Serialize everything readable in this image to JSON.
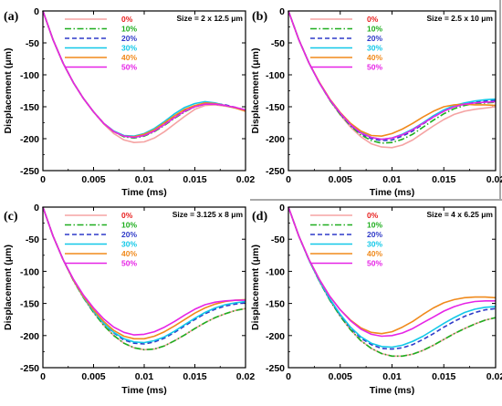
{
  "chart_data": [
    {
      "panel": "(a)",
      "size_label": "Size = 2 x 12.5 μm",
      "type": "line",
      "xlabel": "Time (ms)",
      "ylabel": "Displacement (μm)",
      "xlim": [
        0,
        0.02
      ],
      "ylim": [
        -250,
        0
      ],
      "xticks": [
        "0",
        "0.005",
        "0.01",
        "0.015",
        "0.02"
      ],
      "yticks": [
        "0",
        "-50",
        "-100",
        "-150",
        "-200",
        "-250"
      ],
      "legend_position": "top-left",
      "x": [
        0,
        0.001,
        0.002,
        0.003,
        0.004,
        0.005,
        0.006,
        0.007,
        0.008,
        0.009,
        0.01,
        0.011,
        0.012,
        0.013,
        0.014,
        0.015,
        0.016,
        0.017,
        0.018,
        0.019,
        0.02
      ],
      "series": [
        {
          "name": "0%",
          "color": "#f5a3a3",
          "dash": "solid",
          "values": [
            0,
            -45,
            -82,
            -112,
            -137,
            -158,
            -177,
            -192,
            -202,
            -206,
            -205,
            -199,
            -189,
            -177,
            -165,
            -154,
            -148,
            -147,
            -149,
            -152,
            -157
          ]
        },
        {
          "name": "10%",
          "color": "#1fae1f",
          "dash": "dashdot",
          "values": [
            0,
            -45,
            -82,
            -112,
            -137,
            -158,
            -176,
            -189,
            -197,
            -199,
            -196,
            -189,
            -179,
            -168,
            -158,
            -150,
            -146,
            -146,
            -148,
            -152,
            -155
          ]
        },
        {
          "name": "20%",
          "color": "#2f3ac8",
          "dash": "dashed",
          "values": [
            0,
            -45,
            -82,
            -112,
            -137,
            -158,
            -176,
            -189,
            -196,
            -198,
            -195,
            -188,
            -177,
            -166,
            -156,
            -149,
            -145,
            -145,
            -147,
            -151,
            -155
          ]
        },
        {
          "name": "30%",
          "color": "#12c8e8",
          "dash": "solid",
          "values": [
            0,
            -45,
            -82,
            -112,
            -137,
            -158,
            -176,
            -188,
            -195,
            -196,
            -192,
            -184,
            -173,
            -161,
            -151,
            -145,
            -142,
            -144,
            -148,
            -152,
            -156
          ]
        },
        {
          "name": "40%",
          "color": "#f08a1c",
          "dash": "solid",
          "values": [
            0,
            -45,
            -82,
            -112,
            -137,
            -158,
            -176,
            -189,
            -196,
            -197,
            -193,
            -186,
            -175,
            -164,
            -154,
            -148,
            -144,
            -145,
            -148,
            -152,
            -157
          ]
        },
        {
          "name": "50%",
          "color": "#e624e6",
          "dash": "solid",
          "values": [
            0,
            -45,
            -82,
            -112,
            -137,
            -158,
            -176,
            -189,
            -196,
            -198,
            -195,
            -188,
            -178,
            -167,
            -157,
            -150,
            -146,
            -146,
            -148,
            -151,
            -155
          ]
        }
      ]
    },
    {
      "panel": "(b)",
      "size_label": "Size = 2.5 x 10 μm",
      "type": "line",
      "xlabel": "Time (ms)",
      "ylabel": "Displacement (μm)",
      "xlim": [
        0,
        0.02
      ],
      "ylim": [
        -250,
        0
      ],
      "xticks": [
        "0",
        "0.005",
        "0.01",
        "0.015",
        "0.02"
      ],
      "yticks": [
        "0",
        "-50",
        "-100",
        "-150",
        "-200",
        "-250"
      ],
      "legend_position": "top-left",
      "x": [
        0,
        0.001,
        0.002,
        0.003,
        0.004,
        0.005,
        0.006,
        0.007,
        0.008,
        0.009,
        0.01,
        0.011,
        0.012,
        0.013,
        0.014,
        0.015,
        0.016,
        0.017,
        0.018,
        0.019,
        0.02
      ],
      "series": [
        {
          "name": "0%",
          "color": "#f5a3a3",
          "dash": "solid",
          "values": [
            0,
            -45,
            -82,
            -113,
            -140,
            -163,
            -182,
            -197,
            -208,
            -213,
            -214,
            -210,
            -202,
            -191,
            -180,
            -170,
            -162,
            -157,
            -154,
            -152,
            -150
          ]
        },
        {
          "name": "10%",
          "color": "#1fae1f",
          "dash": "dashdot",
          "values": [
            0,
            -45,
            -82,
            -113,
            -140,
            -162,
            -180,
            -194,
            -203,
            -207,
            -206,
            -201,
            -193,
            -182,
            -171,
            -161,
            -153,
            -148,
            -145,
            -144,
            -143
          ]
        },
        {
          "name": "20%",
          "color": "#2f3ac8",
          "dash": "dashed",
          "values": [
            0,
            -45,
            -82,
            -113,
            -139,
            -161,
            -179,
            -192,
            -200,
            -203,
            -202,
            -196,
            -188,
            -177,
            -166,
            -157,
            -150,
            -146,
            -143,
            -141,
            -140
          ]
        },
        {
          "name": "30%",
          "color": "#12c8e8",
          "dash": "solid",
          "values": [
            0,
            -45,
            -82,
            -113,
            -139,
            -160,
            -178,
            -190,
            -198,
            -201,
            -199,
            -193,
            -185,
            -175,
            -164,
            -155,
            -148,
            -144,
            -141,
            -139,
            -138
          ]
        },
        {
          "name": "40%",
          "color": "#f08a1c",
          "dash": "solid",
          "values": [
            0,
            -45,
            -82,
            -112,
            -138,
            -159,
            -176,
            -188,
            -195,
            -196,
            -192,
            -185,
            -176,
            -166,
            -157,
            -150,
            -147,
            -146,
            -147,
            -147,
            -148
          ]
        },
        {
          "name": "50%",
          "color": "#e624e6",
          "dash": "solid",
          "values": [
            0,
            -45,
            -82,
            -113,
            -139,
            -160,
            -178,
            -191,
            -198,
            -201,
            -199,
            -194,
            -186,
            -176,
            -166,
            -157,
            -150,
            -146,
            -144,
            -143,
            -142
          ]
        }
      ]
    },
    {
      "panel": "(c)",
      "size_label": "Size = 3.125 x 8 μm",
      "type": "line",
      "xlabel": "Time (ms)",
      "ylabel": "Displacement (μm)",
      "xlim": [
        0,
        0.02
      ],
      "ylim": [
        -250,
        0
      ],
      "xticks": [
        "0",
        "0.005",
        "0.01",
        "0.015",
        "0.02"
      ],
      "yticks": [
        "0",
        "-50",
        "-100",
        "-150",
        "-200",
        "-250"
      ],
      "legend_position": "top-left",
      "x": [
        0,
        0.001,
        0.002,
        0.003,
        0.004,
        0.005,
        0.006,
        0.007,
        0.008,
        0.009,
        0.01,
        0.011,
        0.012,
        0.013,
        0.014,
        0.015,
        0.016,
        0.017,
        0.018,
        0.019,
        0.02
      ],
      "series": [
        {
          "name": "0%",
          "color": "#f5a3a3",
          "dash": "solid",
          "values": [
            0,
            -45,
            -82,
            -114,
            -141,
            -164,
            -184,
            -200,
            -212,
            -219,
            -222,
            -221,
            -216,
            -208,
            -199,
            -189,
            -180,
            -172,
            -166,
            -161,
            -158
          ]
        },
        {
          "name": "10%",
          "color": "#1fae1f",
          "dash": "dashdot",
          "values": [
            0,
            -45,
            -82,
            -114,
            -141,
            -164,
            -184,
            -200,
            -212,
            -219,
            -222,
            -221,
            -216,
            -208,
            -199,
            -189,
            -180,
            -172,
            -166,
            -161,
            -158
          ]
        },
        {
          "name": "20%",
          "color": "#2f3ac8",
          "dash": "dashed",
          "values": [
            0,
            -45,
            -82,
            -113,
            -140,
            -162,
            -181,
            -196,
            -207,
            -212,
            -213,
            -210,
            -204,
            -195,
            -185,
            -175,
            -166,
            -159,
            -154,
            -151,
            -149
          ]
        },
        {
          "name": "30%",
          "color": "#12c8e8",
          "dash": "solid",
          "values": [
            0,
            -45,
            -82,
            -113,
            -140,
            -162,
            -181,
            -195,
            -205,
            -210,
            -211,
            -208,
            -202,
            -193,
            -183,
            -173,
            -164,
            -157,
            -152,
            -149,
            -147
          ]
        },
        {
          "name": "40%",
          "color": "#f08a1c",
          "dash": "solid",
          "values": [
            0,
            -45,
            -82,
            -113,
            -139,
            -160,
            -178,
            -192,
            -201,
            -205,
            -205,
            -201,
            -194,
            -185,
            -175,
            -165,
            -157,
            -151,
            -147,
            -145,
            -144
          ]
        },
        {
          "name": "50%",
          "color": "#e624e6",
          "dash": "solid",
          "values": [
            0,
            -45,
            -82,
            -112,
            -137,
            -157,
            -174,
            -187,
            -195,
            -199,
            -198,
            -194,
            -187,
            -178,
            -168,
            -159,
            -152,
            -148,
            -146,
            -145,
            -145
          ]
        }
      ]
    },
    {
      "panel": "(d)",
      "size_label": "Size = 4 x 6.25 μm",
      "type": "line",
      "xlabel": "Time (ms)",
      "ylabel": "Displacement (μm)",
      "xlim": [
        0,
        0.02
      ],
      "ylim": [
        -250,
        0
      ],
      "xticks": [
        "0",
        "0.005",
        "0.01",
        "0.015",
        "0.02"
      ],
      "yticks": [
        "0",
        "-50",
        "-100",
        "-150",
        "-200",
        "-250"
      ],
      "legend_position": "top-left",
      "x": [
        0,
        0.001,
        0.002,
        0.003,
        0.004,
        0.005,
        0.006,
        0.007,
        0.008,
        0.009,
        0.01,
        0.011,
        0.012,
        0.013,
        0.014,
        0.015,
        0.016,
        0.017,
        0.018,
        0.019,
        0.02
      ],
      "series": [
        {
          "name": "0%",
          "color": "#f5a3a3",
          "dash": "solid",
          "values": [
            0,
            -45,
            -83,
            -116,
            -145,
            -170,
            -191,
            -208,
            -220,
            -228,
            -232,
            -232,
            -229,
            -223,
            -215,
            -206,
            -197,
            -189,
            -182,
            -176,
            -172
          ]
        },
        {
          "name": "10%",
          "color": "#1fae1f",
          "dash": "dashdot",
          "values": [
            0,
            -45,
            -83,
            -116,
            -145,
            -170,
            -191,
            -208,
            -220,
            -228,
            -232,
            -232,
            -229,
            -223,
            -215,
            -206,
            -197,
            -189,
            -182,
            -176,
            -172
          ]
        },
        {
          "name": "20%",
          "color": "#2f3ac8",
          "dash": "dashed",
          "values": [
            0,
            -45,
            -83,
            -115,
            -144,
            -168,
            -188,
            -204,
            -214,
            -220,
            -221,
            -219,
            -214,
            -206,
            -197,
            -187,
            -178,
            -170,
            -164,
            -160,
            -158
          ]
        },
        {
          "name": "30%",
          "color": "#12c8e8",
          "dash": "solid",
          "values": [
            0,
            -45,
            -83,
            -115,
            -143,
            -167,
            -187,
            -202,
            -212,
            -217,
            -218,
            -215,
            -209,
            -201,
            -191,
            -181,
            -172,
            -164,
            -159,
            -156,
            -155
          ]
        },
        {
          "name": "40%",
          "color": "#f08a1c",
          "dash": "solid",
          "values": [
            0,
            -45,
            -82,
            -113,
            -139,
            -160,
            -176,
            -188,
            -195,
            -197,
            -194,
            -187,
            -178,
            -167,
            -157,
            -149,
            -144,
            -141,
            -140,
            -140,
            -141
          ]
        },
        {
          "name": "50%",
          "color": "#e624e6",
          "dash": "solid",
          "values": [
            0,
            -45,
            -82,
            -113,
            -139,
            -160,
            -177,
            -190,
            -198,
            -201,
            -200,
            -196,
            -189,
            -180,
            -171,
            -162,
            -155,
            -150,
            -147,
            -146,
            -146
          ]
        }
      ]
    }
  ]
}
